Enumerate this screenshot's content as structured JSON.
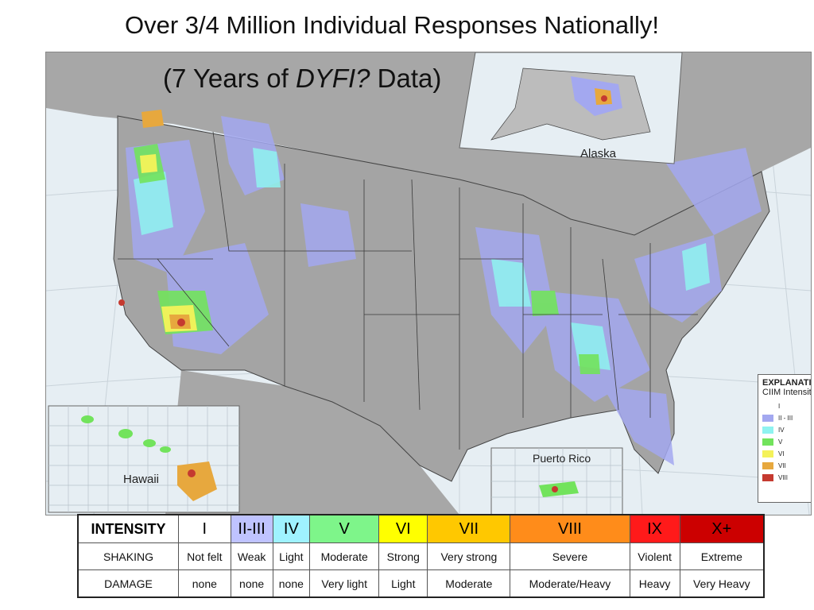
{
  "title": "Over 3/4 Million Individual Responses Nationally!",
  "subtitle_prefix": "(7 Years of ",
  "subtitle_italic": "DYFI?",
  "subtitle_suffix": " Data)",
  "insets": {
    "alaska": "Alaska",
    "hawaii": "Hawaii",
    "puerto_rico": "Puerto Rico"
  },
  "explanation": {
    "heading": "EXPLANATION",
    "subheading": "CIIM Intensity",
    "items": [
      {
        "label": "I",
        "color": "#ffffff"
      },
      {
        "label": "II - III",
        "color": "#a3a8f0"
      },
      {
        "label": "IV",
        "color": "#8ff3f0"
      },
      {
        "label": "V",
        "color": "#72e35c"
      },
      {
        "label": "VI",
        "color": "#f4f25a"
      },
      {
        "label": "VII",
        "color": "#e7a83e"
      },
      {
        "label": "VIII",
        "color": "#c53a30"
      }
    ]
  },
  "intensity_table": {
    "row_labels": {
      "intensity": "INTENSITY",
      "shaking": "SHAKING",
      "damage": "DAMAGE"
    },
    "columns": [
      {
        "intensity": "I",
        "shaking": "Not felt",
        "damage": "none",
        "color": "#ffffff"
      },
      {
        "intensity": "II-III",
        "shaking": "Weak",
        "damage": "none",
        "color": "#bfc3ff"
      },
      {
        "intensity": "IV",
        "shaking": "Light",
        "damage": "none",
        "color": "#9ff2ff"
      },
      {
        "intensity": "V",
        "shaking": "Moderate",
        "damage": "Very light",
        "color": "#7ef58a"
      },
      {
        "intensity": "VI",
        "shaking": "Strong",
        "damage": "Light",
        "color": "#ffff00"
      },
      {
        "intensity": "VII",
        "shaking": "Very strong",
        "damage": "Moderate",
        "color": "#ffc800"
      },
      {
        "intensity": "VIII",
        "shaking": "Severe",
        "damage": "Moderate/Heavy",
        "color": "#ff8c1a"
      },
      {
        "intensity": "IX",
        "shaking": "Violent",
        "damage": "Heavy",
        "color": "#ff1a1a"
      },
      {
        "intensity": "X+",
        "shaking": "Extreme",
        "damage": "Very Heavy",
        "color": "#cc0000"
      }
    ]
  }
}
